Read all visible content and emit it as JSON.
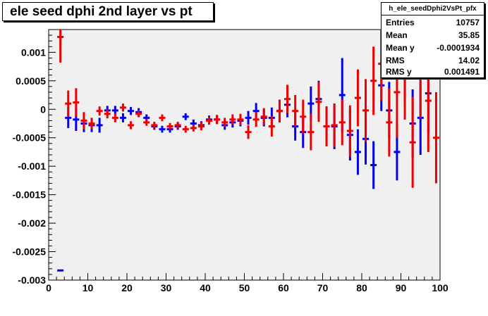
{
  "title": "ele seed dphi 2nd layer vs pt",
  "stats": {
    "name": "h_ele_seedDphi2VsPt_pfx",
    "rows": [
      {
        "key": "Entries",
        "value": "10757"
      },
      {
        "key": "Mean",
        "value": "35.85"
      },
      {
        "key": "Mean y",
        "value": "-0.0001934"
      },
      {
        "key": "RMS",
        "value": "14.02"
      },
      {
        "key": "RMS y",
        "value": "0.001491"
      }
    ]
  },
  "colors": {
    "frame_bg": "#f0f0f0",
    "blue": "#0000ee",
    "red": "#ee0000",
    "axis": "#000000"
  },
  "chart_data": {
    "type": "scatter",
    "title": "ele seed dphi 2nd layer vs pt",
    "xlim": [
      0,
      100
    ],
    "ylim": [
      -0.003,
      0.0014
    ],
    "x_ticks": [
      0,
      10,
      20,
      30,
      40,
      50,
      60,
      70,
      80,
      90,
      100
    ],
    "y_ticks": [
      -0.003,
      -0.0025,
      -0.002,
      -0.0015,
      -0.001,
      -0.0005,
      0,
      0.0005,
      0.001
    ],
    "y_tick_labels": [
      "-0.003",
      "-0.0025",
      "-0.002",
      "-0.0015",
      "-0.001",
      "-0.0005",
      "0",
      "0.0005",
      "0.001"
    ],
    "x_tick_labels": [
      "0",
      "10",
      "20",
      "30",
      "40",
      "50",
      "60",
      "70",
      "80",
      "90",
      "100"
    ],
    "grid": false,
    "legend": "none",
    "series": [
      {
        "color": "blue",
        "points": [
          {
            "x": 3,
            "y": -0.00283,
            "err": 0
          },
          {
            "x": 5,
            "y": -0.00015,
            "err": 0.00018
          },
          {
            "x": 7,
            "y": -0.00018,
            "err": 0.0002
          },
          {
            "x": 9,
            "y": -0.00025,
            "err": 0.00015
          },
          {
            "x": 11,
            "y": -0.00028,
            "err": 0.00012
          },
          {
            "x": 13,
            "y": -0.00028,
            "err": 0.00013
          },
          {
            "x": 15,
            "y": -2e-05,
            "err": 8e-05
          },
          {
            "x": 17,
            "y": -2e-05,
            "err": 8e-05
          },
          {
            "x": 19,
            "y": -0.00015,
            "err": 8e-05
          },
          {
            "x": 21,
            "y": -3e-05,
            "err": 7e-05
          },
          {
            "x": 23,
            "y": -5e-05,
            "err": 7e-05
          },
          {
            "x": 25,
            "y": -0.00015,
            "err": 6e-05
          },
          {
            "x": 27,
            "y": -0.0003,
            "err": 6e-05
          },
          {
            "x": 29,
            "y": -0.00035,
            "err": 6e-05
          },
          {
            "x": 31,
            "y": -0.00035,
            "err": 6e-05
          },
          {
            "x": 33,
            "y": -0.0003,
            "err": 6e-05
          },
          {
            "x": 35,
            "y": -0.00013,
            "err": 6e-05
          },
          {
            "x": 37,
            "y": -0.00025,
            "err": 7e-05
          },
          {
            "x": 39,
            "y": -0.00028,
            "err": 7e-05
          },
          {
            "x": 41,
            "y": -0.00018,
            "err": 7e-05
          },
          {
            "x": 43,
            "y": -0.00018,
            "err": 8e-05
          },
          {
            "x": 45,
            "y": -0.00028,
            "err": 8e-05
          },
          {
            "x": 47,
            "y": -0.00023,
            "err": 9e-05
          },
          {
            "x": 49,
            "y": -0.0002,
            "err": 0.0001
          },
          {
            "x": 51,
            "y": -0.00015,
            "err": 0.00012
          },
          {
            "x": 53,
            "y": -3e-05,
            "err": 0.00014
          },
          {
            "x": 55,
            "y": -0.00015,
            "err": 0.00015
          },
          {
            "x": 57,
            "y": -0.00015,
            "err": 0.00018
          },
          {
            "x": 59,
            "y": -3e-05,
            "err": 0.0002
          },
          {
            "x": 61,
            "y": 8e-05,
            "err": 0.00022
          },
          {
            "x": 63,
            "y": -0.0003,
            "err": 0.00025
          },
          {
            "x": 65,
            "y": -0.0004,
            "err": 0.00028
          },
          {
            "x": 67,
            "y": 0.0001,
            "err": 0.0003
          },
          {
            "x": 69,
            "y": 0.00018,
            "err": 0.00032
          },
          {
            "x": 71,
            "y": -0.0003,
            "err": 0.00035
          },
          {
            "x": 73,
            "y": -0.0003,
            "err": 0.0004
          },
          {
            "x": 75,
            "y": 0.00025,
            "err": 0.00065
          },
          {
            "x": 77,
            "y": -0.00045,
            "err": 0.00045
          },
          {
            "x": 79,
            "y": -0.00075,
            "err": 0.0004
          },
          {
            "x": 81,
            "y": -0.00052,
            "err": 0.00045
          },
          {
            "x": 83,
            "y": -0.00098,
            "err": 0.00042
          },
          {
            "x": 85,
            "y": 0.00042,
            "err": 0.00045
          },
          {
            "x": 87,
            "y": -2e-05,
            "err": 0.0005
          },
          {
            "x": 89,
            "y": -0.00075,
            "err": 0.0005
          },
          {
            "x": 91,
            "y": 0.00068,
            "err": 0.00055
          },
          {
            "x": 93,
            "y": -0.00025,
            "err": 0.0006
          },
          {
            "x": 95,
            "y": -0.00015,
            "err": 0.00065
          },
          {
            "x": 97,
            "y": 0.00028,
            "err": 0.0007
          }
        ]
      },
      {
        "color": "red",
        "points": [
          {
            "x": 3,
            "y": 0.00127,
            "err": 0.00045
          },
          {
            "x": 5,
            "y": 0.0001,
            "err": 0.00023
          },
          {
            "x": 7,
            "y": 0.00012,
            "err": 0.00025
          },
          {
            "x": 9,
            "y": -0.0002,
            "err": 0.00015
          },
          {
            "x": 11,
            "y": -0.00025,
            "err": 0.0001
          },
          {
            "x": 13,
            "y": -3e-05,
            "err": 8e-05
          },
          {
            "x": 15,
            "y": -8e-05,
            "err": 8e-05
          },
          {
            "x": 17,
            "y": -0.00015,
            "err": 8e-05
          },
          {
            "x": 19,
            "y": 3e-05,
            "err": 7e-05
          },
          {
            "x": 21,
            "y": -0.00028,
            "err": 7e-05
          },
          {
            "x": 23,
            "y": -8e-05,
            "err": 6e-05
          },
          {
            "x": 25,
            "y": -0.00023,
            "err": 6e-05
          },
          {
            "x": 27,
            "y": -0.00028,
            "err": 6e-05
          },
          {
            "x": 29,
            "y": -0.00015,
            "err": 6e-05
          },
          {
            "x": 31,
            "y": -0.0003,
            "err": 6e-05
          },
          {
            "x": 33,
            "y": -0.00028,
            "err": 6e-05
          },
          {
            "x": 35,
            "y": -0.00035,
            "err": 6e-05
          },
          {
            "x": 37,
            "y": -0.00033,
            "err": 6e-05
          },
          {
            "x": 39,
            "y": -0.0003,
            "err": 7e-05
          },
          {
            "x": 41,
            "y": -0.0002,
            "err": 7e-05
          },
          {
            "x": 43,
            "y": -0.00018,
            "err": 8e-05
          },
          {
            "x": 45,
            "y": -0.00023,
            "err": 8e-05
          },
          {
            "x": 47,
            "y": -0.00018,
            "err": 9e-05
          },
          {
            "x": 49,
            "y": -0.00018,
            "err": 0.0001
          },
          {
            "x": 51,
            "y": -0.0004,
            "err": 0.00012
          },
          {
            "x": 53,
            "y": -0.00018,
            "err": 0.00013
          },
          {
            "x": 55,
            "y": -0.00013,
            "err": 0.00015
          },
          {
            "x": 57,
            "y": -0.0003,
            "err": 0.00018
          },
          {
            "x": 59,
            "y": -3e-05,
            "err": 0.0002
          },
          {
            "x": 61,
            "y": 0.00018,
            "err": 0.00025
          },
          {
            "x": 63,
            "y": -3e-05,
            "err": 0.00028
          },
          {
            "x": 65,
            "y": -0.00013,
            "err": 0.0003
          },
          {
            "x": 67,
            "y": -0.0004,
            "err": 0.00032
          },
          {
            "x": 69,
            "y": 0.00013,
            "err": 0.00035
          },
          {
            "x": 71,
            "y": -0.0003,
            "err": 0.00035
          },
          {
            "x": 73,
            "y": -0.00028,
            "err": 0.00038
          },
          {
            "x": 75,
            "y": -0.00023,
            "err": 0.0004
          },
          {
            "x": 77,
            "y": -0.00038,
            "err": 0.00045
          },
          {
            "x": 79,
            "y": 0.0002,
            "err": 0.0005
          },
          {
            "x": 81,
            "y": -2e-05,
            "err": 0.00055
          },
          {
            "x": 83,
            "y": 0.0005,
            "err": 0.0006
          },
          {
            "x": 85,
            "y": 0.0008,
            "err": 0.00065
          },
          {
            "x": 87,
            "y": -0.00023,
            "err": 0.0006
          },
          {
            "x": 89,
            "y": 0.0003,
            "err": 0.0008
          },
          {
            "x": 91,
            "y": 0.00062,
            "err": 0.0008
          },
          {
            "x": 93,
            "y": -0.00058,
            "err": 0.0008
          },
          {
            "x": 95,
            "y": 0.00075,
            "err": 0.0009
          },
          {
            "x": 97,
            "y": 0.00015,
            "err": 0.0009
          },
          {
            "x": 99,
            "y": -0.0005,
            "err": 0.0008
          }
        ]
      }
    ]
  }
}
